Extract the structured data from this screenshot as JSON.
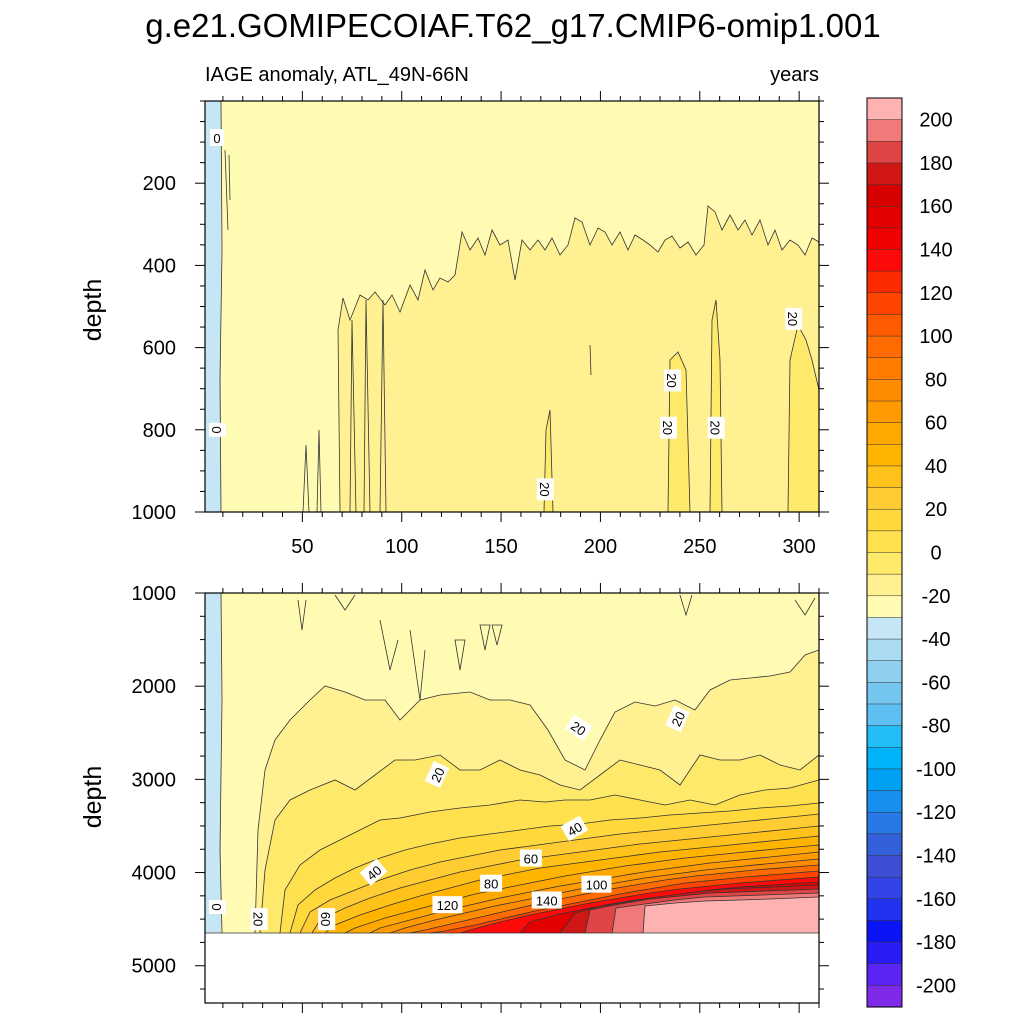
{
  "chart_data": {
    "type": "heatmap",
    "title": "g.e21.GOMIPECOIAF.T62_g17.CMIP6-omip1.001",
    "left_subtitle": "IAGE anomaly, ATL_49N-66N",
    "right_subtitle": "years",
    "xlabel": "",
    "ylabel": "depth",
    "xlim": [
      1,
      310
    ],
    "x_ticks": [
      50,
      100,
      150,
      200,
      250,
      300
    ],
    "x_tick_labels": [
      "50",
      "100",
      "150",
      "200",
      "250",
      "300"
    ],
    "panels": [
      {
        "name": "upper",
        "ylim": [
          0,
          1000
        ],
        "y_reversed": true,
        "y_ticks": [
          200,
          400,
          600,
          800,
          1000
        ],
        "y_tick_labels": [
          "200",
          "400",
          "600",
          "800",
          "1000"
        ],
        "x_labels_shown": true,
        "contour_labels": [
          {
            "text": "0",
            "x": 7,
            "depth": 90,
            "angle": 0
          },
          {
            "text": "0",
            "x": 7,
            "depth": 800,
            "angle": 90
          },
          {
            "text": "20",
            "x": 172,
            "depth": 945,
            "angle": 90
          },
          {
            "text": "20",
            "x": 236,
            "depth": 680,
            "angle": 90
          },
          {
            "text": "20",
            "x": 234,
            "depth": 795,
            "angle": 90
          },
          {
            "text": "20",
            "x": 258,
            "depth": 795,
            "angle": 90
          },
          {
            "text": "20",
            "x": 297,
            "depth": 530,
            "angle": 90
          }
        ]
      },
      {
        "name": "lower",
        "ylim": [
          1000,
          5400
        ],
        "y_reversed": true,
        "y_ticks": [
          1000,
          2000,
          3000,
          4000,
          5000
        ],
        "y_tick_labels": [
          "1000",
          "2000",
          "3000",
          "4000",
          "5000"
        ],
        "x_labels_shown": false,
        "data_bottom_depth": 4620,
        "contour_labels": [
          {
            "text": "0",
            "x": 7,
            "depth": 4370,
            "angle": 90
          },
          {
            "text": "20",
            "x": 28,
            "depth": 4500,
            "angle": 90
          },
          {
            "text": "60",
            "x": 62,
            "depth": 4500,
            "angle": 90
          },
          {
            "text": "20",
            "x": 118,
            "depth": 2950,
            "angle": -65
          },
          {
            "text": "20",
            "x": 189,
            "depth": 2450,
            "angle": 35
          },
          {
            "text": "20",
            "x": 239,
            "depth": 2350,
            "angle": -65
          },
          {
            "text": "40",
            "x": 86,
            "depth": 4000,
            "angle": -40
          },
          {
            "text": "40",
            "x": 187,
            "depth": 3530,
            "angle": -30
          },
          {
            "text": "60",
            "x": 165,
            "depth": 3850,
            "angle": 0
          },
          {
            "text": "80",
            "x": 145,
            "depth": 4120,
            "angle": 0
          },
          {
            "text": "100",
            "x": 198,
            "depth": 4130,
            "angle": 0
          },
          {
            "text": "120",
            "x": 123,
            "depth": 4350,
            "angle": 0
          },
          {
            "text": "140",
            "x": 173,
            "depth": 4300,
            "angle": 0
          }
        ]
      }
    ],
    "colorbar": {
      "label_values": [
        200,
        180,
        160,
        140,
        120,
        100,
        80,
        60,
        40,
        20,
        0,
        -20,
        -40,
        -60,
        -80,
        -100,
        -120,
        -140,
        -160,
        -180,
        -200
      ],
      "label_texts": [
        "200",
        "180",
        "160",
        "140",
        "120",
        "100",
        "80",
        "60",
        "40",
        "20",
        "0",
        "-20",
        "-40",
        "-60",
        "-80",
        "-100",
        "-120",
        "-140",
        "-160",
        "-180",
        "-200"
      ],
      "colors_top_to_bottom": [
        "#ffb2b2",
        "#f07a7a",
        "#e04545",
        "#d11616",
        "#d60000",
        "#e30000",
        "#f00000",
        "#ff0a0a",
        "#ff2b00",
        "#ff4400",
        "#ff5a00",
        "#ff6b00",
        "#ff7c00",
        "#ff8c00",
        "#ff9a00",
        "#ffa800",
        "#ffb400",
        "#ffc21a",
        "#ffcc33",
        "#ffd83c",
        "#ffe14f",
        "#fee96b",
        "#fff091",
        "#fffbb3",
        "#c6e6f6",
        "#acdcf1",
        "#8fd0ef",
        "#75c6ef",
        "#5ebff2",
        "#22bdf6",
        "#00b2f8",
        "#00a0f5",
        "#178ff1",
        "#2878e8",
        "#3560dc",
        "#3e4ed6",
        "#3344e6",
        "#2233ef",
        "#0a14f5",
        "#2a1cf5",
        "#5a24f2",
        "#7f2ae8"
      ]
    },
    "fill_colors": {
      "level_0_20": "#fffbb3",
      "level_20_25": "#fff091",
      "level_25_30": "#fee96b",
      "level_30_35": "#ffe14f",
      "level_35_40": "#ffd83c",
      "negative": "#c6e6f6",
      "missing": "#ffffff"
    }
  }
}
